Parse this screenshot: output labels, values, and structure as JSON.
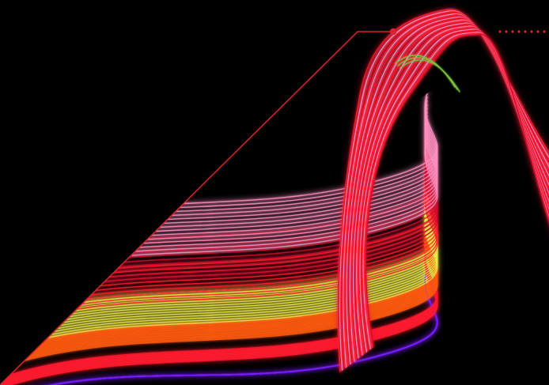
{
  "scene": {
    "subject": "light-trail-ribbon",
    "background_color": "#000000",
    "accent_line_color": "#d8212c",
    "palette": {
      "violet": "#7a1cff",
      "red": "#ff1a2e",
      "orange": "#ff5a10",
      "yellow": "#e9e64a",
      "pink": "#ff8fc0",
      "crimson": "#c8102e",
      "green": "#7cc242"
    }
  }
}
